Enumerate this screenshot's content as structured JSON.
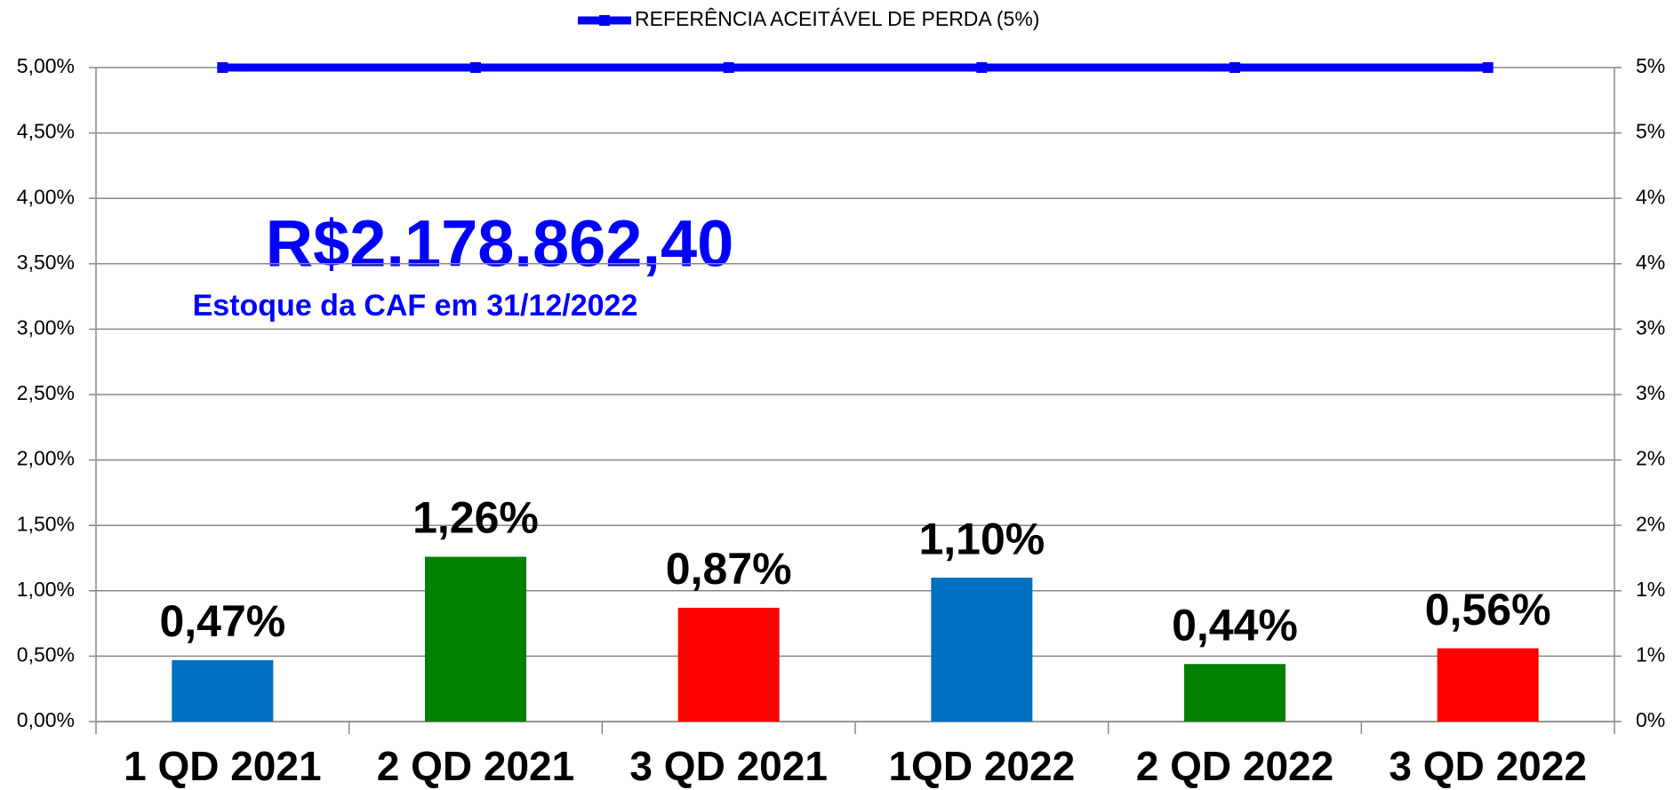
{
  "chart_data": {
    "type": "bar",
    "categories": [
      "1 QD 2021",
      "2 QD 2021",
      "3 QD 2021",
      "1QD 2022",
      "2 QD 2022",
      "3 QD 2022"
    ],
    "values": [
      0.47,
      1.26,
      0.87,
      1.1,
      0.44,
      0.56
    ],
    "value_labels": [
      "0,47%",
      "1,26%",
      "0,87%",
      "1,10%",
      "0,44%",
      "0,56%"
    ],
    "colors": [
      "#0070c0",
      "#008000",
      "#ff0000",
      "#0070c0",
      "#008000",
      "#ff0000"
    ],
    "series": [
      {
        "name": "REFERÊNCIA ACEITÁVEL DE PERDA (5%)",
        "color": "#0000ff",
        "type": "line",
        "axis": "y2",
        "values": [
          5,
          5,
          5,
          5,
          5,
          5
        ]
      }
    ],
    "annotations": [
      "R$2.178.862,40",
      "Estoque da CAF em 31/12/2022"
    ],
    "ylim": [
      0,
      5
    ],
    "yticks": [
      {
        "value": 0,
        "label": "0,00%"
      },
      {
        "value": 0.5,
        "label": "0,50%"
      },
      {
        "value": 1,
        "label": "1,00%"
      },
      {
        "value": 1.5,
        "label": "1,50%"
      },
      {
        "value": 2,
        "label": "2,00%"
      },
      {
        "value": 2.5,
        "label": "2,50%"
      },
      {
        "value": 3,
        "label": "3,00%"
      },
      {
        "value": 3.5,
        "label": "3,50%"
      },
      {
        "value": 4,
        "label": "4,00%"
      },
      {
        "value": 4.5,
        "label": "4,50%"
      },
      {
        "value": 5,
        "label": "5,00%"
      }
    ],
    "y2lim": [
      0,
      5
    ],
    "y2ticks": [
      {
        "value": 0,
        "label": "0%"
      },
      {
        "value": 0.5,
        "label": "1%"
      },
      {
        "value": 1,
        "label": "1%"
      },
      {
        "value": 1.5,
        "label": "2%"
      },
      {
        "value": 2,
        "label": "2%"
      },
      {
        "value": 2.5,
        "label": "3%"
      },
      {
        "value": 3,
        "label": "3%"
      },
      {
        "value": 3.5,
        "label": "4%"
      },
      {
        "value": 4,
        "label": "4%"
      },
      {
        "value": 4.5,
        "label": "5%"
      },
      {
        "value": 5,
        "label": "5%"
      }
    ],
    "grid": true,
    "legend": "top"
  }
}
